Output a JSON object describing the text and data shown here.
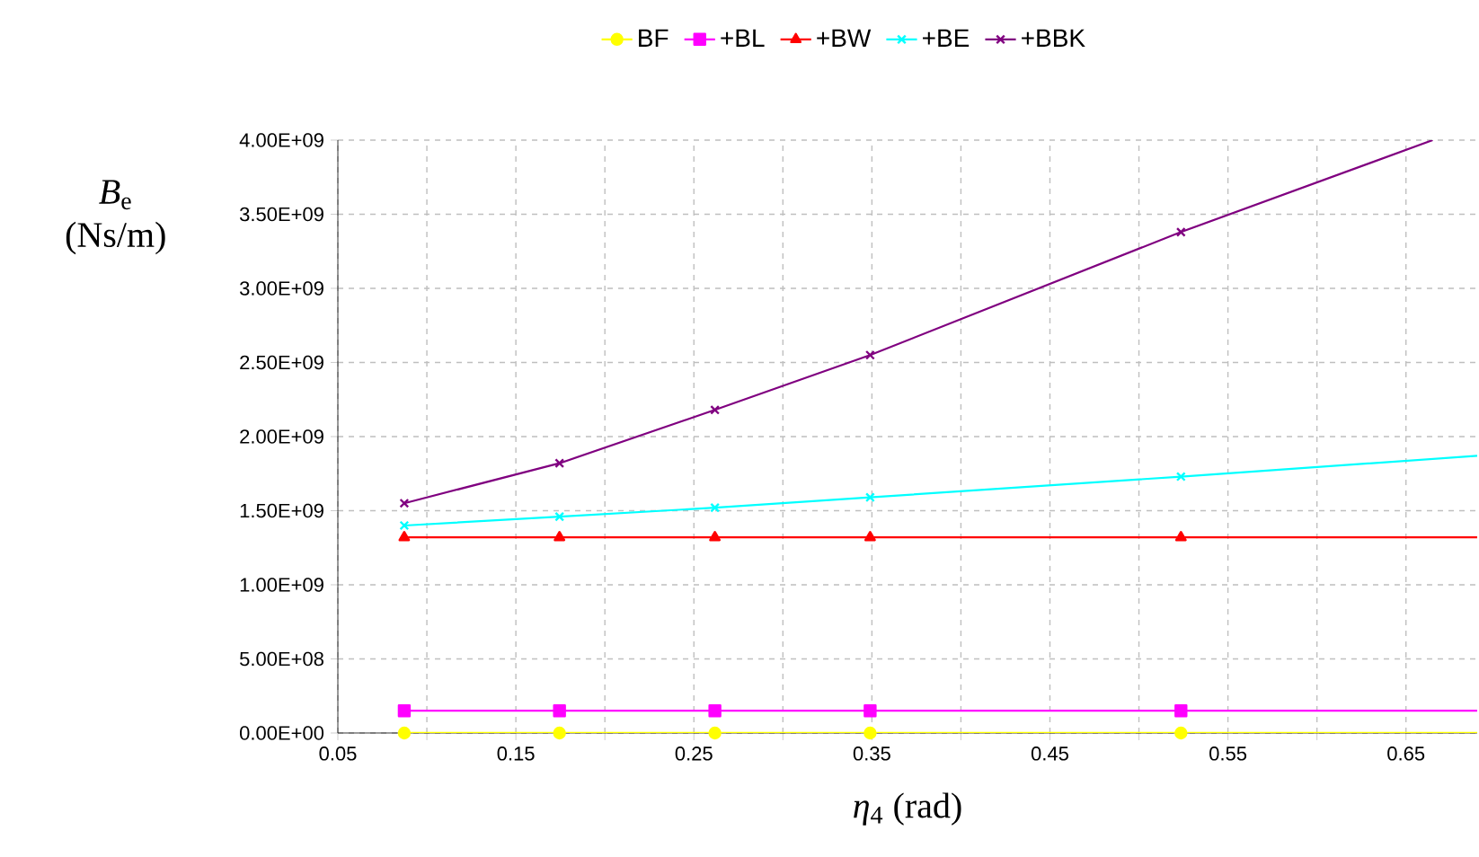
{
  "chart_data": {
    "type": "line",
    "xlabel": "*η*$_{4}$ (rad)",
    "ylabel": "*B*$_{e}$ (Ns/m)",
    "xlim": [
      0.05,
      0.69
    ],
    "ylim": [
      0,
      4000000000
    ],
    "xticks": [
      0.05,
      {
        "value": 0.1,
        "label": null
      },
      0.15,
      {
        "value": 0.2,
        "label": null
      },
      0.25,
      {
        "value": 0.3,
        "label": null
      },
      0.35,
      {
        "value": 0.4,
        "label": null
      },
      0.45,
      {
        "value": 0.5,
        "label": null
      },
      0.55,
      {
        "value": 0.6,
        "label": null
      },
      0.65
    ],
    "yticks": [
      {
        "value": 0,
        "label": "0.00E+00"
      },
      {
        "value": 500000000,
        "label": "5.00E+08"
      },
      {
        "value": 1000000000,
        "label": "1.00E+09"
      },
      {
        "value": 1500000000,
        "label": "1.50E+09"
      },
      {
        "value": 2000000000,
        "label": "2.00E+09"
      },
      {
        "value": 2500000000,
        "label": "2.50E+09"
      },
      {
        "value": 3000000000,
        "label": "3.00E+09"
      },
      {
        "value": 3500000000,
        "label": "3.50E+09"
      },
      {
        "value": 4000000000,
        "label": "4.00E+09"
      }
    ],
    "grid": true,
    "legend": "top",
    "series": [
      {
        "name": "BF",
        "color": "#ffff00",
        "marker": "circle",
        "x": [
          0.0873,
          0.1745,
          0.2618,
          0.349,
          0.5236,
          0.69
        ],
        "values": [
          0,
          0,
          0,
          0,
          0,
          0
        ]
      },
      {
        "name": "+BL",
        "color": "#ff00ff",
        "marker": "square",
        "x": [
          0.0873,
          0.1745,
          0.2618,
          0.349,
          0.5236,
          0.69
        ],
        "values": [
          150000000,
          150000000,
          150000000,
          150000000,
          150000000,
          150000000
        ]
      },
      {
        "name": "+BW",
        "color": "#ff0000",
        "marker": "triangle",
        "x": [
          0.0873,
          0.1745,
          0.2618,
          0.349,
          0.5236,
          0.69
        ],
        "values": [
          1320000000,
          1320000000,
          1320000000,
          1320000000,
          1320000000,
          1320000000
        ]
      },
      {
        "name": "+BE",
        "color": "#00ffff",
        "marker": "cross",
        "x": [
          0.0873,
          0.1745,
          0.2618,
          0.349,
          0.5236,
          0.69
        ],
        "values": [
          1400000000,
          1460000000,
          1520000000,
          1590000000,
          1730000000,
          1870000000
        ]
      },
      {
        "name": "+BBK",
        "color": "#800080",
        "marker": "cross",
        "x": [
          0.0873,
          0.1745,
          0.2618,
          0.349,
          0.5236,
          0.665
        ],
        "values": [
          1550000000,
          1820000000,
          2180000000,
          2550000000,
          3380000000,
          4000000000
        ]
      }
    ]
  }
}
